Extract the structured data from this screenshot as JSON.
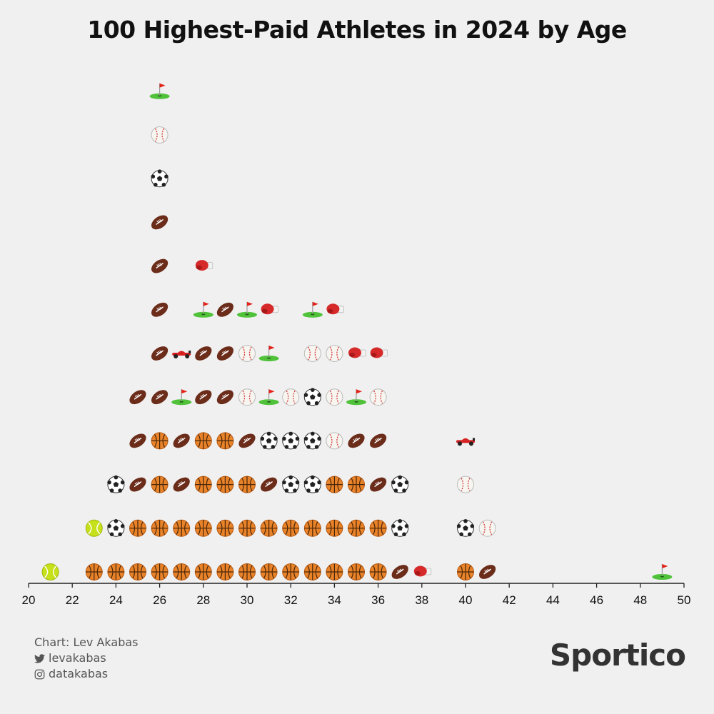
{
  "title": "100 Highest-Paid Athletes in 2024 by Age",
  "credits": {
    "chart_by": "Chart: Lev Akabas",
    "twitter": "levakabas",
    "instagram": "datakabas"
  },
  "brand": "Sportico",
  "colors": {
    "background": "#f0f0f0",
    "axis": "#222222",
    "basketball": "#e8832a",
    "football": "#6b2c1a",
    "soccer_black": "#222222",
    "tennis": "#c6e01a",
    "golf_green": "#4fc23a",
    "golf_flag": "#e2231a",
    "boxing": "#d62a2a",
    "f1": "#d61f1f",
    "baseball_stitch": "#d43b3b"
  },
  "chart_data": {
    "type": "scatter",
    "subtype": "stacked-icon-dot-plot",
    "title": "100 Highest-Paid Athletes in 2024 by Age",
    "xlabel": "",
    "ylabel": "",
    "xlim": [
      20,
      50
    ],
    "xticks": [
      20,
      22,
      24,
      26,
      28,
      30,
      32,
      34,
      36,
      38,
      40,
      42,
      44,
      46,
      48,
      50
    ],
    "legend": "none",
    "stacks": [
      {
        "age": 21,
        "sports": [
          "tennis"
        ]
      },
      {
        "age": 23,
        "sports": [
          "basketball",
          "tennis"
        ]
      },
      {
        "age": 24,
        "sports": [
          "basketball",
          "soccer",
          "soccer"
        ]
      },
      {
        "age": 25,
        "sports": [
          "basketball",
          "basketball",
          "football",
          "football",
          "football"
        ]
      },
      {
        "age": 26,
        "sports": [
          "basketball",
          "basketball",
          "basketball",
          "basketball",
          "football",
          "football",
          "football",
          "football",
          "football",
          "soccer",
          "baseball",
          "golf"
        ]
      },
      {
        "age": 27,
        "sports": [
          "basketball",
          "basketball",
          "football",
          "football",
          "golf",
          "f1"
        ]
      },
      {
        "age": 28,
        "sports": [
          "basketball",
          "basketball",
          "basketball",
          "basketball",
          "football",
          "football",
          "golf",
          "boxing"
        ]
      },
      {
        "age": 29,
        "sports": [
          "basketball",
          "basketball",
          "basketball",
          "basketball",
          "football",
          "football",
          "football"
        ]
      },
      {
        "age": 30,
        "sports": [
          "basketball",
          "basketball",
          "basketball",
          "football",
          "baseball",
          "baseball",
          "golf"
        ]
      },
      {
        "age": 31,
        "sports": [
          "basketball",
          "basketball",
          "football",
          "soccer",
          "golf",
          "golf",
          "boxing"
        ]
      },
      {
        "age": 32,
        "sports": [
          "basketball",
          "basketball",
          "soccer",
          "soccer",
          "baseball"
        ]
      },
      {
        "age": 33,
        "sports": [
          "basketball",
          "basketball",
          "soccer",
          "soccer",
          "soccer",
          "baseball",
          "golf"
        ]
      },
      {
        "age": 34,
        "sports": [
          "basketball",
          "basketball",
          "basketball",
          "baseball",
          "baseball",
          "baseball",
          "boxing"
        ]
      },
      {
        "age": 35,
        "sports": [
          "basketball",
          "basketball",
          "basketball",
          "football",
          "golf",
          "boxing"
        ]
      },
      {
        "age": 36,
        "sports": [
          "basketball",
          "basketball",
          "football",
          "football",
          "baseball",
          "boxing"
        ]
      },
      {
        "age": 37,
        "sports": [
          "football",
          "soccer",
          "soccer"
        ]
      },
      {
        "age": 38,
        "sports": [
          "boxing"
        ]
      },
      {
        "age": 40,
        "sports": [
          "basketball",
          "soccer",
          "baseball",
          "f1"
        ]
      },
      {
        "age": 41,
        "sports": [
          "football",
          "baseball"
        ]
      },
      {
        "age": 49,
        "sports": [
          "golf"
        ]
      }
    ]
  }
}
